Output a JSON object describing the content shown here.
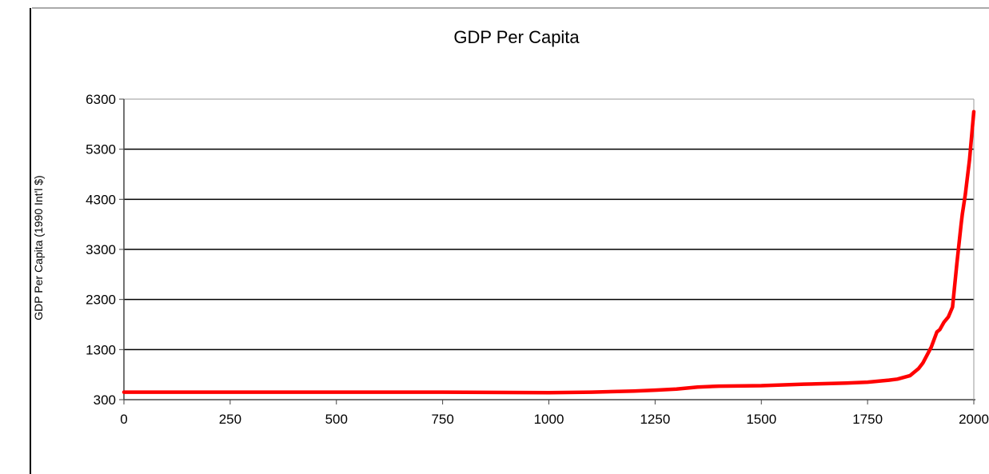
{
  "chart_data": {
    "type": "line",
    "title": "GDP Per Capita",
    "xlabel": "",
    "ylabel": "GDP Per Capita (1990 Int'l $)",
    "xlim": [
      0,
      2000
    ],
    "ylim": [
      300,
      6300
    ],
    "x_ticks": [
      0,
      250,
      500,
      750,
      1000,
      1250,
      1500,
      1750,
      2000
    ],
    "y_ticks": [
      300,
      1300,
      2300,
      3300,
      4300,
      5300,
      6300
    ],
    "grid": "horizontal",
    "legend": "none",
    "colors": {
      "line": "#ff0000",
      "grid": "#000000",
      "grid_top": "#9a9a9a"
    },
    "series": [
      {
        "x": [
          0,
          250,
          500,
          750,
          1000,
          1100,
          1200,
          1250,
          1300,
          1350,
          1400,
          1500,
          1600,
          1700,
          1750,
          1800,
          1820,
          1850,
          1870,
          1880,
          1900,
          1913,
          1920,
          1930,
          1940,
          1950,
          1960,
          1970,
          1973,
          1980,
          1990,
          2000
        ],
        "y": [
          450,
          450,
          450,
          450,
          440,
          450,
          470,
          490,
          510,
          550,
          570,
          580,
          610,
          630,
          650,
          690,
          710,
          780,
          920,
          1030,
          1350,
          1650,
          1700,
          1850,
          1950,
          2150,
          3000,
          3800,
          4000,
          4400,
          5100,
          6050
        ]
      }
    ]
  }
}
